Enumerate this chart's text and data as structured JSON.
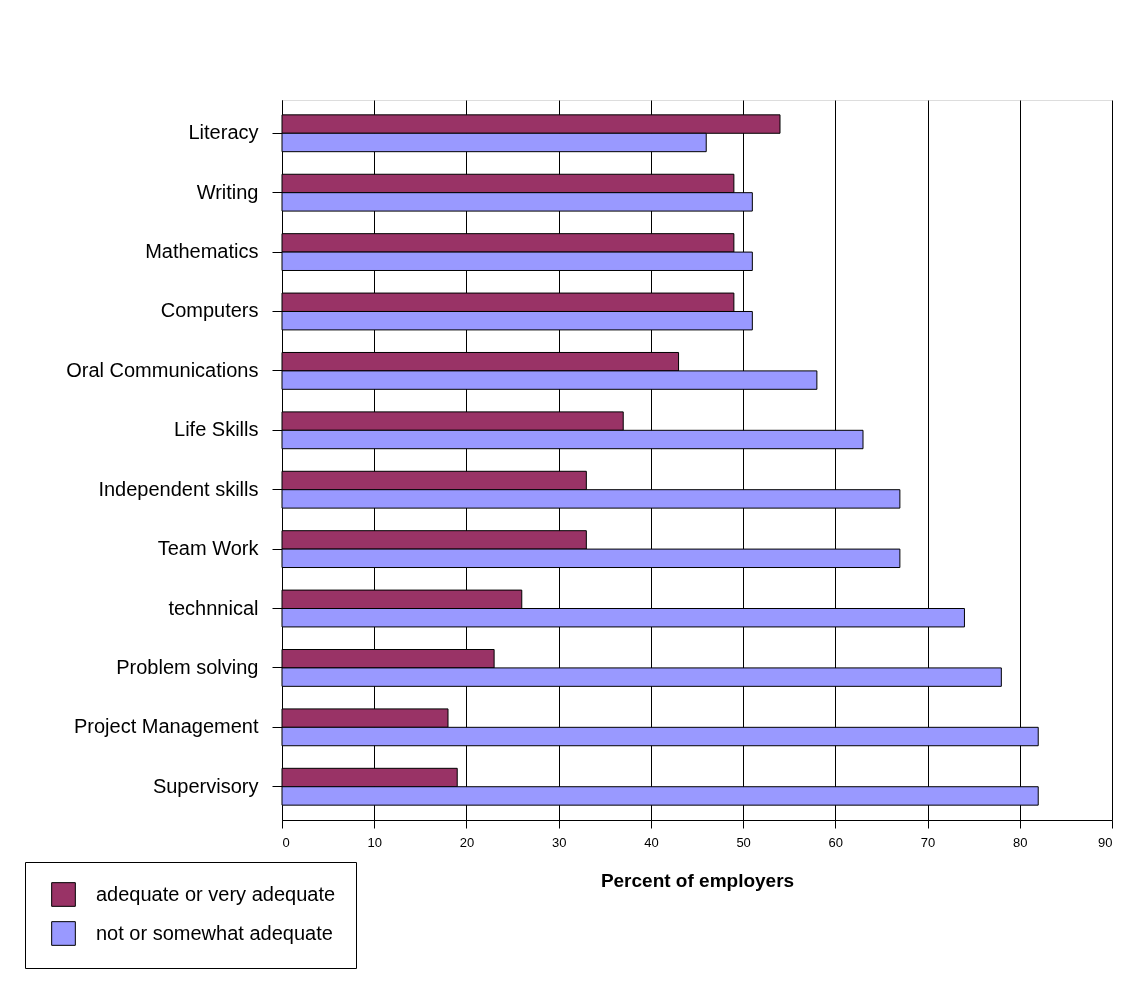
{
  "chart_data": {
    "type": "bar",
    "orientation": "horizontal",
    "categories": [
      "Literacy",
      "Writing",
      "Mathematics",
      "Computers",
      "Oral Communications",
      "Life Skills",
      "Independent skills",
      "Team Work",
      "technnical",
      "Problem solving",
      "Project Management",
      "Supervisory"
    ],
    "series": [
      {
        "name": "adequate or very adequate",
        "color": "#993366",
        "values": [
          54,
          49,
          49,
          49,
          43,
          37,
          33,
          33,
          26,
          23,
          18,
          19
        ]
      },
      {
        "name": "not or somewhat adequate",
        "color": "#9999ff",
        "values": [
          46,
          51,
          51,
          51,
          58,
          63,
          67,
          67,
          74,
          78,
          82,
          82
        ]
      }
    ],
    "xlabel": "Percent of employers",
    "xlim": [
      0,
      90
    ],
    "xticks": [
      0,
      10,
      20,
      30,
      40,
      50,
      60,
      70,
      80,
      90
    ],
    "grid": "x",
    "legend": "bottom left"
  }
}
